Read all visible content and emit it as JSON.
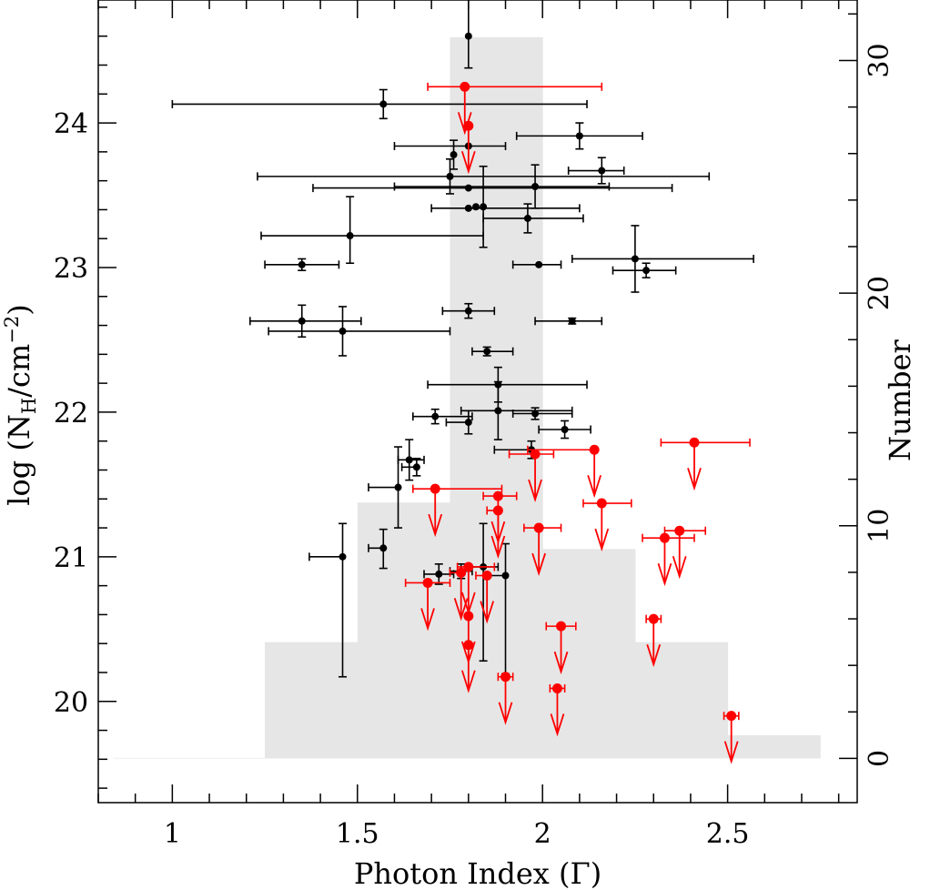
{
  "chart_data": {
    "type": "scatter",
    "xlabel": "Photon Index (Γ)",
    "ylabel_left": "log (N",
    "ylabel_left_sub": "H",
    "ylabel_left_tail": "/cm",
    "ylabel_left_sup": "−2",
    "ylabel_left_end": ")",
    "ylabel_right": "Number",
    "xlim": [
      0.8,
      2.85
    ],
    "ylim_left": [
      19.3,
      24.85
    ],
    "ylim_right": [
      -1.9,
      32.6
    ],
    "x_ticks": [
      1,
      1.5,
      2,
      2.5
    ],
    "x_tick_labels": [
      "1",
      "1.5",
      "2",
      "2.5"
    ],
    "y_left_ticks": [
      20,
      21,
      22,
      23,
      24
    ],
    "y_left_tick_labels": [
      "20",
      "21",
      "22",
      "23",
      "24"
    ],
    "y_right_ticks": [
      0,
      10,
      20,
      30
    ],
    "y_right_tick_labels": [
      "0",
      "10",
      "20",
      "30"
    ],
    "grid": false,
    "colors": {
      "detections": "#000000",
      "upper_limits": "#ff0000",
      "histogram": "#e6e6e6"
    },
    "histogram": {
      "name": "",
      "bin_edges": [
        1.25,
        1.5,
        1.75,
        2.0,
        2.25,
        2.5,
        2.75
      ],
      "counts": [
        5,
        11,
        31,
        9,
        5,
        1
      ],
      "baseline_x": [
        0.84,
        1.25
      ]
    },
    "series": [
      {
        "kind": "detections",
        "points": [
          {
            "x": 1.8,
            "y": 24.6,
            "xerr": [
              0.0,
              0.0
            ],
            "yerr": [
              0.22,
              0.3
            ]
          },
          {
            "x": 1.57,
            "y": 24.13,
            "xerr": [
              0.57,
              0.55
            ],
            "yerr": [
              0.1,
              0.1
            ]
          },
          {
            "x": 2.1,
            "y": 23.91,
            "xerr": [
              0.17,
              0.17
            ],
            "yerr": [
              0.09,
              0.09
            ]
          },
          {
            "x": 1.8,
            "y": 23.84,
            "xerr": [
              0.2,
              0.1
            ],
            "yerr": [
              0.0,
              0.0
            ]
          },
          {
            "x": 1.76,
            "y": 23.78,
            "xerr": [
              0.0,
              0.0
            ],
            "yerr": [
              0.1,
              0.1
            ]
          },
          {
            "x": 2.16,
            "y": 23.67,
            "xerr": [
              0.09,
              0.06
            ],
            "yerr": [
              0.09,
              0.09
            ]
          },
          {
            "x": 1.75,
            "y": 23.63,
            "xerr": [
              0.52,
              0.7
            ],
            "yerr": [
              0.12,
              0.12
            ]
          },
          {
            "x": 1.8,
            "y": 23.55,
            "xerr": [
              0.42,
              0.55
            ],
            "yerr": [
              0.0,
              0.0
            ]
          },
          {
            "x": 1.98,
            "y": 23.56,
            "xerr": [
              0.38,
              0.2
            ],
            "yerr": [
              0.15,
              0.15
            ]
          },
          {
            "x": 1.8,
            "y": 23.41,
            "xerr": [
              0.1,
              0.3
            ],
            "yerr": [
              0.0,
              0.0
            ]
          },
          {
            "x": 1.82,
            "y": 23.42,
            "xerr": [
              0.0,
              0.0
            ],
            "yerr": [
              0.0,
              0.0
            ]
          },
          {
            "x": 1.84,
            "y": 23.42,
            "xerr": [
              0.0,
              0.0
            ],
            "yerr": [
              0.28,
              0.28
            ]
          },
          {
            "x": 1.96,
            "y": 23.34,
            "xerr": [
              0.12,
              0.15
            ],
            "yerr": [
              0.1,
              0.1
            ]
          },
          {
            "x": 1.48,
            "y": 23.22,
            "xerr": [
              0.24,
              0.36
            ],
            "yerr": [
              0.19,
              0.27
            ]
          },
          {
            "x": 2.25,
            "y": 23.06,
            "xerr": [
              0.17,
              0.32
            ],
            "yerr": [
              0.23,
              0.23
            ]
          },
          {
            "x": 1.35,
            "y": 23.02,
            "xerr": [
              0.1,
              0.1
            ],
            "yerr": [
              0.04,
              0.04
            ]
          },
          {
            "x": 1.99,
            "y": 23.02,
            "xerr": [
              0.07,
              0.06
            ],
            "yerr": [
              0.0,
              0.0
            ]
          },
          {
            "x": 2.28,
            "y": 22.98,
            "xerr": [
              0.09,
              0.08
            ],
            "yerr": [
              0.05,
              0.05
            ]
          },
          {
            "x": 1.8,
            "y": 22.7,
            "xerr": [
              0.07,
              0.07
            ],
            "yerr": [
              0.05,
              0.05
            ]
          },
          {
            "x": 1.35,
            "y": 22.63,
            "xerr": [
              0.14,
              0.16
            ],
            "yerr": [
              0.11,
              0.11
            ]
          },
          {
            "x": 2.08,
            "y": 22.63,
            "xerr": [
              0.1,
              0.08
            ],
            "yerr": [
              0.02,
              0.02
            ]
          },
          {
            "x": 1.46,
            "y": 22.56,
            "xerr": [
              0.2,
              0.29
            ],
            "yerr": [
              0.17,
              0.17
            ]
          },
          {
            "x": 1.85,
            "y": 22.42,
            "xerr": [
              0.04,
              0.07
            ],
            "yerr": [
              0.03,
              0.03
            ]
          },
          {
            "x": 1.88,
            "y": 22.19,
            "xerr": [
              0.19,
              0.24
            ],
            "yerr": [
              0.12,
              0.12
            ]
          },
          {
            "x": 1.71,
            "y": 21.97,
            "xerr": [
              0.06,
              0.1
            ],
            "yerr": [
              0.05,
              0.05
            ]
          },
          {
            "x": 1.98,
            "y": 21.99,
            "xerr": [
              0.06,
              0.1
            ],
            "yerr": [
              0.04,
              0.04
            ]
          },
          {
            "x": 1.88,
            "y": 22.01,
            "xerr": [
              0.1,
              0.2
            ],
            "yerr": [
              0.2,
              0.2
            ]
          },
          {
            "x": 1.8,
            "y": 21.93,
            "xerr": [
              0.06,
              0.0
            ],
            "yerr": [
              0.08,
              0.08
            ]
          },
          {
            "x": 2.06,
            "y": 21.88,
            "xerr": [
              0.07,
              0.07
            ],
            "yerr": [
              0.06,
              0.06
            ]
          },
          {
            "x": 1.97,
            "y": 21.74,
            "xerr": [
              0.1,
              0.0
            ],
            "yerr": [
              0.06,
              0.06
            ]
          },
          {
            "x": 1.64,
            "y": 21.67,
            "xerr": [
              0.03,
              0.04
            ],
            "yerr": [
              0.14,
              0.14
            ]
          },
          {
            "x": 1.66,
            "y": 21.62,
            "xerr": [
              0.04,
              0.0
            ],
            "yerr": [
              0.06,
              0.06
            ]
          },
          {
            "x": 1.61,
            "y": 21.48,
            "xerr": [
              0.08,
              0.0
            ],
            "yerr": [
              0.28,
              0.28
            ]
          },
          {
            "x": 1.46,
            "y": 21.0,
            "xerr": [
              0.09,
              0.0
            ],
            "yerr": [
              0.83,
              0.23
            ]
          },
          {
            "x": 1.57,
            "y": 21.06,
            "xerr": [
              0.04,
              0.0
            ],
            "yerr": [
              0.14,
              0.13
            ]
          },
          {
            "x": 1.72,
            "y": 20.88,
            "xerr": [
              0.04,
              0.04
            ],
            "yerr": [
              0.07,
              0.07
            ]
          },
          {
            "x": 1.78,
            "y": 20.9,
            "xerr": [
              0.03,
              0.03
            ],
            "yerr": [
              0.05,
              0.05
            ]
          },
          {
            "x": 1.84,
            "y": 20.93,
            "xerr": [
              0.04,
              0.04
            ],
            "yerr": [
              0.65,
              0.3
            ]
          },
          {
            "x": 1.9,
            "y": 20.87,
            "xerr": [
              0.05,
              0.0
            ],
            "yerr": [
              0.68,
              0.22
            ]
          }
        ]
      },
      {
        "kind": "upper_limits",
        "points": [
          {
            "x": 1.79,
            "y": 24.25,
            "xerr": [
              0.1,
              0.37
            ]
          },
          {
            "x": 1.8,
            "y": 23.98,
            "xerr": [
              0.0,
              0.0
            ]
          },
          {
            "x": 2.41,
            "y": 21.79,
            "xerr": [
              0.09,
              0.15
            ]
          },
          {
            "x": 2.14,
            "y": 21.74,
            "xerr": [
              0.18,
              0.0
            ]
          },
          {
            "x": 1.98,
            "y": 21.71,
            "xerr": [
              0.07,
              0.05
            ]
          },
          {
            "x": 1.71,
            "y": 21.47,
            "xerr": [
              0.06,
              0.18
            ]
          },
          {
            "x": 1.88,
            "y": 21.42,
            "xerr": [
              0.04,
              0.05
            ]
          },
          {
            "x": 2.16,
            "y": 21.37,
            "xerr": [
              0.05,
              0.08
            ]
          },
          {
            "x": 1.88,
            "y": 21.32,
            "xerr": [
              0.03,
              0.0
            ]
          },
          {
            "x": 1.99,
            "y": 21.2,
            "xerr": [
              0.04,
              0.06
            ]
          },
          {
            "x": 2.37,
            "y": 21.18,
            "xerr": [
              0.04,
              0.07
            ]
          },
          {
            "x": 2.33,
            "y": 21.13,
            "xerr": [
              0.06,
              0.08
            ]
          },
          {
            "x": 1.8,
            "y": 20.93,
            "xerr": [
              0.03,
              0.07
            ]
          },
          {
            "x": 1.78,
            "y": 20.89,
            "xerr": [
              0.03,
              0.0
            ]
          },
          {
            "x": 1.85,
            "y": 20.87,
            "xerr": [
              0.03,
              0.0
            ]
          },
          {
            "x": 1.69,
            "y": 20.82,
            "xerr": [
              0.06,
              0.06
            ]
          },
          {
            "x": 1.8,
            "y": 20.59,
            "xerr": [
              0.0,
              0.0
            ]
          },
          {
            "x": 2.3,
            "y": 20.57,
            "xerr": [
              0.02,
              0.02
            ]
          },
          {
            "x": 2.05,
            "y": 20.52,
            "xerr": [
              0.04,
              0.04
            ]
          },
          {
            "x": 1.8,
            "y": 20.39,
            "xerr": [
              0.0,
              0.0
            ]
          },
          {
            "x": 1.9,
            "y": 20.17,
            "xerr": [
              0.02,
              0.02
            ]
          },
          {
            "x": 2.04,
            "y": 20.09,
            "xerr": [
              0.02,
              0.02
            ]
          },
          {
            "x": 2.51,
            "y": 19.9,
            "xerr": [
              0.02,
              0.02
            ]
          }
        ]
      }
    ]
  }
}
